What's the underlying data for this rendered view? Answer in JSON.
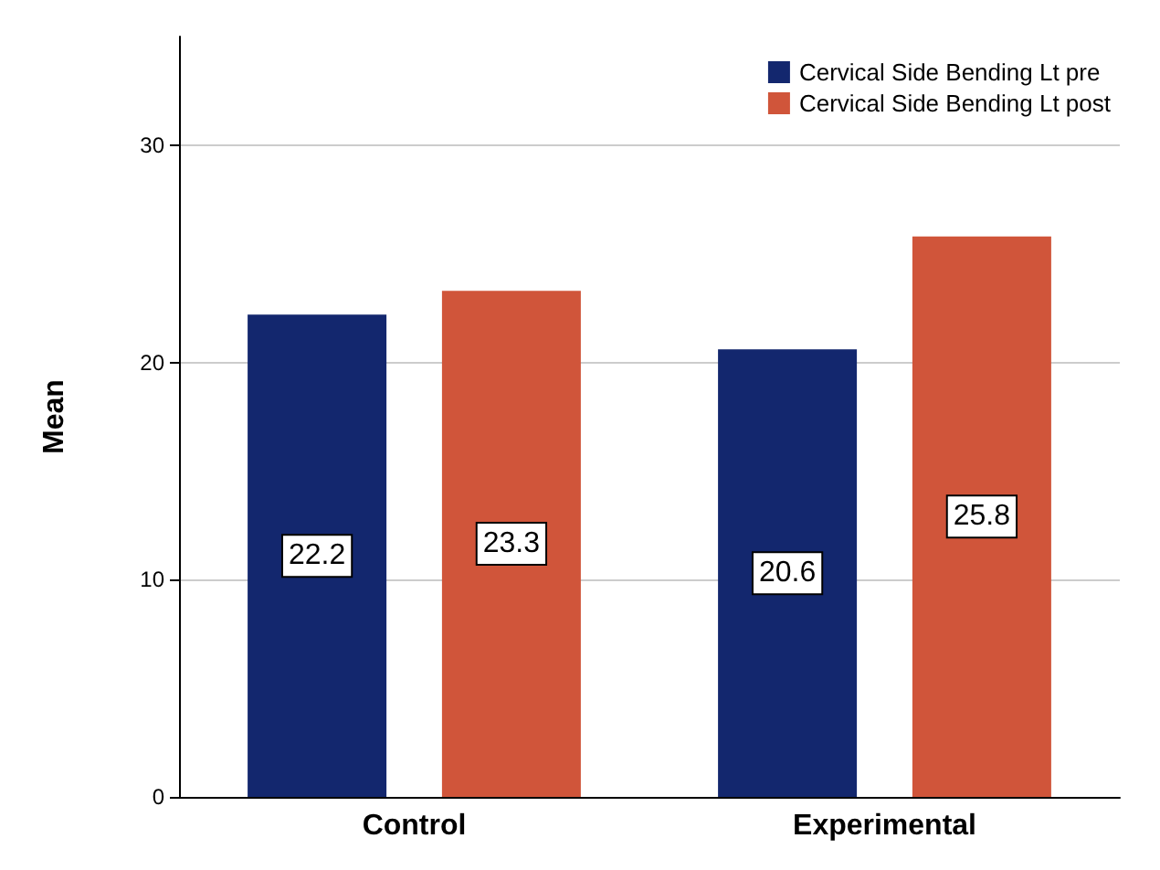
{
  "chart_data": {
    "type": "bar",
    "ylabel": "Mean",
    "categories": [
      "Control",
      "Experimental"
    ],
    "series": [
      {
        "name": "Cervical Side Bending Lt pre",
        "color": "#13276e",
        "values": [
          22.2,
          20.6
        ]
      },
      {
        "name": "Cervical Side Bending Lt post",
        "color": "#d0553a",
        "values": [
          23.3,
          25.8
        ]
      }
    ],
    "ylim": [
      0,
      35
    ],
    "yticks": [
      0,
      10,
      20,
      30
    ],
    "grid": "y",
    "legend": "top right",
    "data_labels": true
  }
}
